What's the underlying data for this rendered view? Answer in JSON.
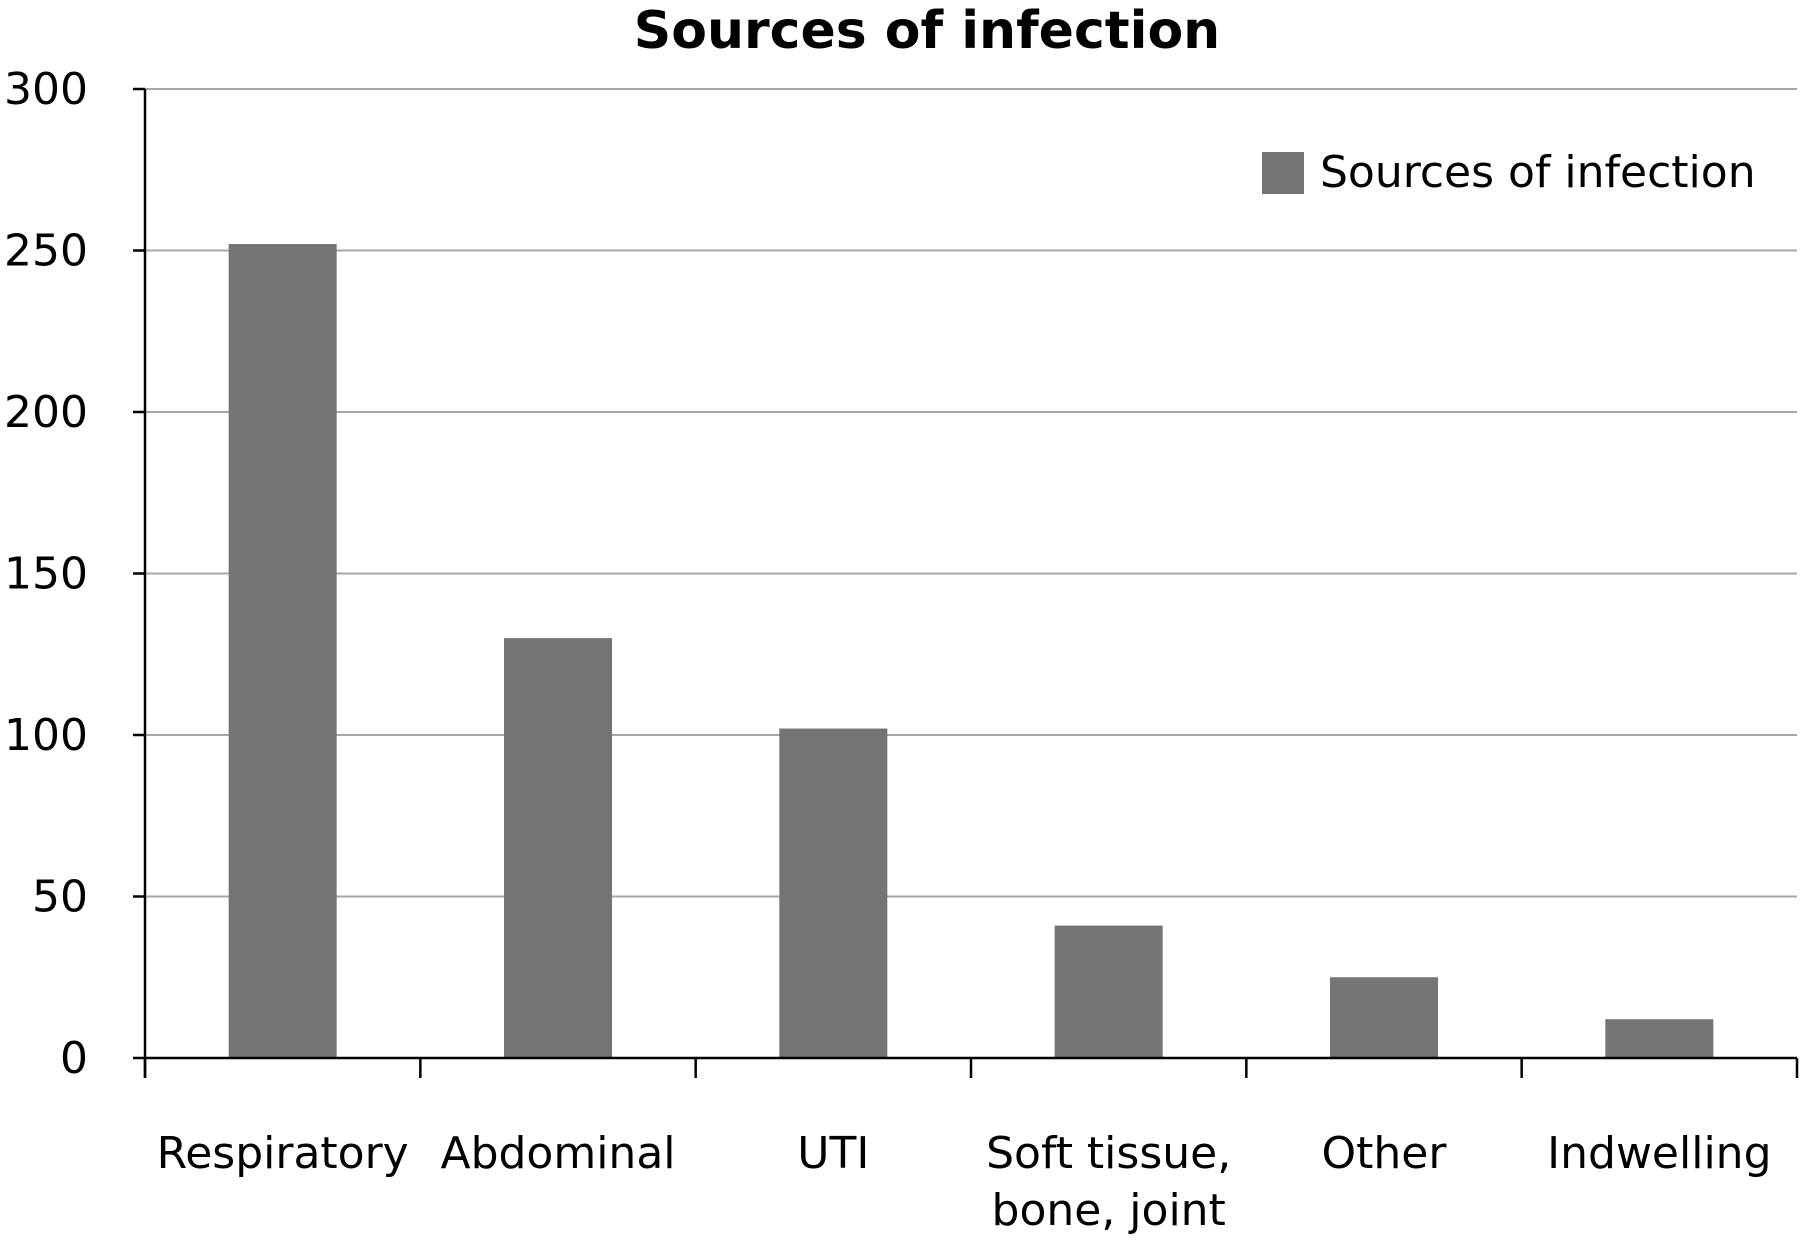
{
  "chart_data": {
    "type": "bar",
    "title": "Sources of infection",
    "xlabel": "",
    "ylabel": "",
    "categories": [
      [
        "Respiratory"
      ],
      [
        "Abdominal"
      ],
      [
        "UTI"
      ],
      [
        "Soft tissue,",
        "bone, joint"
      ],
      [
        "Other"
      ],
      [
        "Indwelling"
      ]
    ],
    "series": [
      {
        "name": "Sources of infection",
        "values": [
          252,
          130,
          102,
          41,
          25,
          12
        ],
        "color": "#747474"
      }
    ],
    "ylim": [
      0,
      300
    ],
    "yticks": [
      "0",
      "50",
      "100",
      "150",
      "200",
      "250",
      "300"
    ],
    "grid": true,
    "legend_position": "top-right"
  }
}
